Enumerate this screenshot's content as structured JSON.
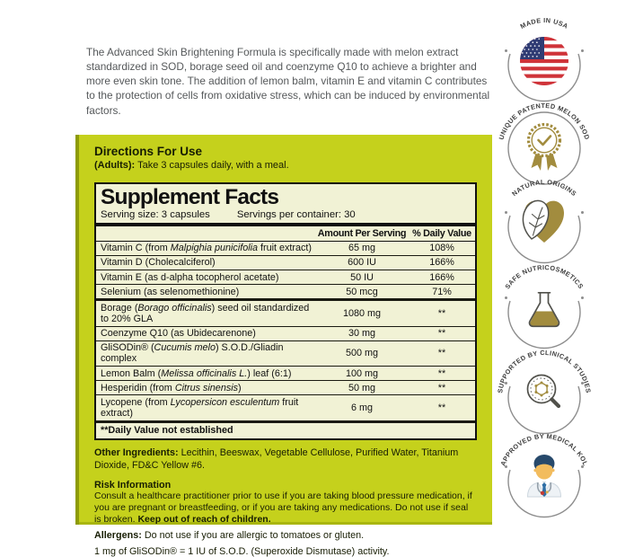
{
  "intro": {
    "text": "The Advanced Skin Brightening Formula is specifically made with melon extract standardized in SOD, borage seed oil and coenzyme Q10 to achieve a brighter and more even skin tone. The addition of lemon balm, vitamin E and vitamin C contributes to the protection of cells from oxidative stress, which can be induced by environmental factors."
  },
  "directions": {
    "title": "Directions For Use",
    "adults_label": "(Adults):",
    "adults_text": "Take 3 capsules daily, with a meal."
  },
  "supplement_facts": {
    "title": "Supplement Facts",
    "serving_size": "Serving size: 3 capsules",
    "servings_per_container": "Servings per container: 30",
    "columns": [
      "Amount Per Serving",
      "% Daily Value"
    ],
    "rows": [
      {
        "name": "Vitamin C (from {Malpighia punicifolia} fruit extract)",
        "amount": "65 mg",
        "dv": "108%",
        "thick_below": false
      },
      {
        "name": "Vitamin D (Cholecalciferol)",
        "amount": "600 IU",
        "dv": "166%",
        "thick_below": false
      },
      {
        "name": "Vitamin E (as d-alpha tocopherol acetate)",
        "amount": "50 IU",
        "dv": "166%",
        "thick_below": false
      },
      {
        "name": "Selenium (as selenomethionine)",
        "amount": "50 mcg",
        "dv": "71%",
        "thick_below": true
      },
      {
        "name": "Borage ({Borago officinalis}) seed oil standardized to 20% GLA",
        "amount": "1080 mg",
        "dv": "**",
        "thick_below": false
      },
      {
        "name": "Coenzyme Q10 (as Ubidecarenone)",
        "amount": "30 mg",
        "dv": "**",
        "thick_below": false
      },
      {
        "name": "GliSODin® ({Cucumis melo}) S.O.D./Gliadin complex",
        "amount": "500 mg",
        "dv": "**",
        "thick_below": false
      },
      {
        "name": "Lemon Balm ({Melissa officinalis L.}) leaf (6:1)",
        "amount": "100 mg",
        "dv": "**",
        "thick_below": false
      },
      {
        "name": "Hesperidin (from {Citrus sinensis})",
        "amount": "50 mg",
        "dv": "**",
        "thick_below": false
      },
      {
        "name": "Lycopene (from {Lycopersicon esculentum} fruit extract)",
        "amount": "6 mg",
        "dv": "**",
        "thick_below": true
      }
    ],
    "footnote": "**Daily Value not established"
  },
  "other_ingredients": {
    "label": "Other Ingredients:",
    "text": "Lecithin, Beeswax, Vegetable Cellulose, Purified Water, Titanium Dioxide, FD&C Yellow #6."
  },
  "risk": {
    "title": "Risk Information",
    "text": "Consult a healthcare practitioner prior to use if you are taking blood pressure medication, if you are pregnant or breastfeeding, or if you are taking any medications. Do not use if seal is broken. ",
    "bold_text": "Keep out of reach of children."
  },
  "allergens": {
    "label": "Allergens:",
    "text": "Do not use if you are allergic to tomatoes or gluten."
  },
  "glisodin_note": "1 mg of GliSODin® = 1 IU of S.O.D. (Superoxide Dismutase) activity.",
  "badges": [
    {
      "label": "MADE IN USA",
      "icon": "usa-flag-icon",
      "ring": "arc"
    },
    {
      "label": "UNIQUE PATENTED MELON SOD",
      "icon": "medal-check-icon",
      "ring": "circle"
    },
    {
      "label": "NATURAL ORIGINS",
      "icon": "leaf-heart-icon",
      "ring": "arc"
    },
    {
      "label": "SAFE NUTRICOSMETICS",
      "icon": "flask-icon",
      "ring": "arc"
    },
    {
      "label": "SUPPORTED BY CLINICAL STUDIES",
      "icon": "molecule-magnifier-icon",
      "ring": "arc"
    },
    {
      "label": "APPROVED BY MEDICAL KOL",
      "icon": "doctor-icon",
      "ring": "arc"
    }
  ],
  "colors": {
    "panel_green": "#c5d11c",
    "facts_bg": "#f1f2d5",
    "accent_gold": "#a28c3e",
    "flag_red": "#cf3339",
    "flag_blue": "#303c74",
    "ring_gray": "#8d8d8d",
    "intro_gray": "#55585a"
  }
}
